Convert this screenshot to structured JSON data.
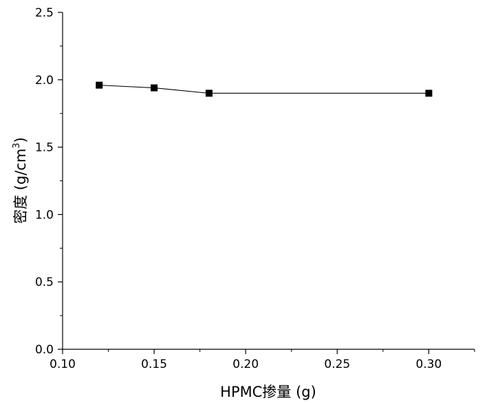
{
  "chart_data": {
    "type": "line",
    "title": "",
    "xlabel": "HPMC掺量 (g)",
    "ylabel": "密度 (g/cm",
    "ylabel_sup": "3",
    "ylabel_close": ")",
    "xlim": [
      0.1,
      0.325
    ],
    "ylim": [
      0.0,
      2.5
    ],
    "x_ticks": [
      0.1,
      0.15,
      0.2,
      0.25,
      0.3
    ],
    "x_tick_labels": [
      "0.10",
      "0.15",
      "0.20",
      "0.25",
      "0.30"
    ],
    "y_ticks": [
      0.0,
      0.5,
      1.0,
      1.5,
      2.0,
      2.5
    ],
    "y_tick_labels": [
      "0.0",
      "0.5",
      "1.0",
      "1.5",
      "2.0",
      "2.5"
    ],
    "grid": false,
    "legend": "none",
    "marker": "square",
    "line_color": "#000000",
    "series": [
      {
        "x": [
          0.12,
          0.15,
          0.18,
          0.3
        ],
        "y": [
          1.96,
          1.94,
          1.9,
          1.9
        ]
      }
    ]
  }
}
